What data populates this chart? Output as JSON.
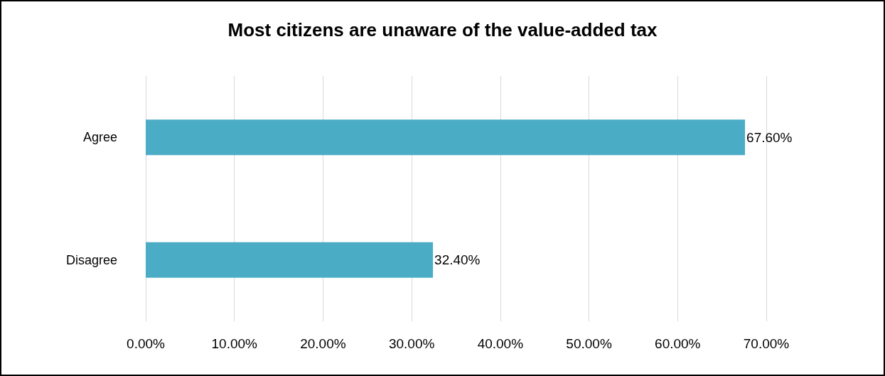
{
  "chart_data": {
    "type": "bar",
    "orientation": "horizontal",
    "title": "Most citizens are unaware of the value-added tax",
    "categories": [
      "Agree",
      "Disagree"
    ],
    "values": [
      67.6,
      32.4
    ],
    "value_labels": [
      "67.60%",
      "32.40%"
    ],
    "color": "#4bacc6",
    "xlim": [
      0,
      70
    ],
    "xticks": [
      {
        "value": 0,
        "label": "0.00%"
      },
      {
        "value": 10,
        "label": "10.00%"
      },
      {
        "value": 20,
        "label": "20.00%"
      },
      {
        "value": 30,
        "label": "30.00%"
      },
      {
        "value": 40,
        "label": "40.00%"
      },
      {
        "value": 50,
        "label": "50.00%"
      },
      {
        "value": 60,
        "label": "60.00%"
      },
      {
        "value": 70,
        "label": "70.00%"
      }
    ],
    "grid": "x"
  }
}
